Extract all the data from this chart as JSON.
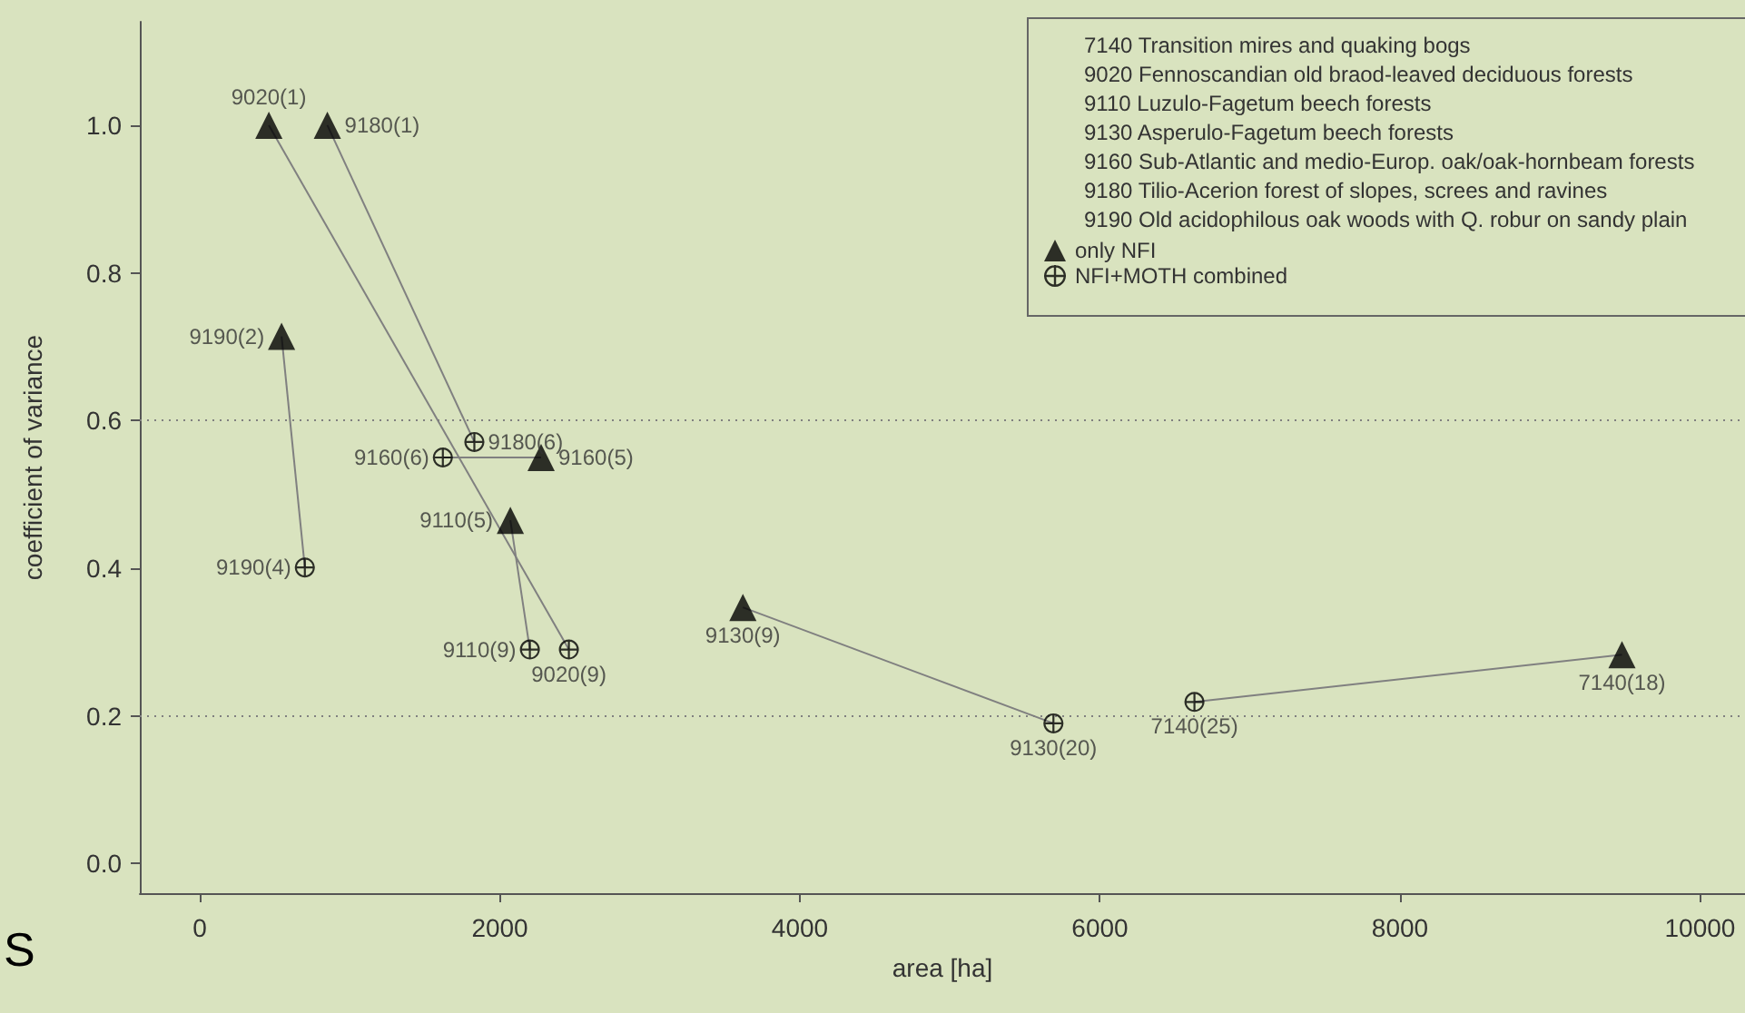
{
  "chart_data": {
    "type": "scatter",
    "xlabel": "area [ha]",
    "ylabel": "coefficient of variance",
    "xlim": [
      -400,
      10300
    ],
    "xticks": [
      0,
      2000,
      4000,
      6000,
      8000,
      10000
    ],
    "ylim": [
      -0.04,
      1.14
    ],
    "yticks": [
      {
        "value": 0,
        "label": "0.0"
      },
      0.2,
      0.4,
      0.6,
      0.8,
      {
        "value": 1,
        "label": "1.0"
      }
    ],
    "grid": false,
    "legend": "top right",
    "series": [
      {
        "name": "only NFI",
        "color": "#000000",
        "marker": "triangle",
        "x": [
          460,
          850,
          545,
          2275,
          2070,
          3620,
          9480
        ],
        "values": [
          1.0,
          1.0,
          0.714,
          0.55,
          0.465,
          0.347,
          0.283
        ],
        "value_labels": [
          "9020(1)",
          "9180(1)",
          "9190(2)",
          "9160(5)",
          "9110(5)",
          "9130(9)",
          "7140(18)"
        ]
      },
      {
        "name": "NFI+MOTH combined",
        "color": "#000000",
        "marker": "circle",
        "x": [
          1830,
          1620,
          700,
          2200,
          2460,
          5690,
          6630
        ],
        "values": [
          0.571,
          0.55,
          0.401,
          0.29,
          0.29,
          0.19,
          0.219
        ],
        "value_labels": [
          "9180(6)",
          "9160(6)",
          "9190(4)",
          "9110(9)",
          "9020(9)",
          "9130(20)",
          "7140(25)"
        ]
      },
      {
        "type": "line",
        "color": "#808080",
        "marker": "none",
        "x": [
          460,
          2460
        ],
        "values": [
          1.0,
          0.29
        ]
      },
      {
        "type": "line",
        "color": "#808080",
        "marker": "none",
        "x": [
          850,
          1830
        ],
        "values": [
          1.0,
          0.571
        ]
      },
      {
        "type": "line",
        "color": "#808080",
        "marker": "none",
        "x": [
          545,
          700
        ],
        "values": [
          0.714,
          0.401
        ]
      },
      {
        "type": "line",
        "color": "#808080",
        "marker": "none",
        "x": [
          2275,
          1620
        ],
        "values": [
          0.55,
          0.55
        ]
      },
      {
        "type": "line",
        "color": "#808080",
        "marker": "none",
        "x": [
          2070,
          2200
        ],
        "values": [
          0.465,
          0.29
        ]
      },
      {
        "type": "line",
        "color": "#808080",
        "marker": "none",
        "x": [
          3620,
          5690
        ],
        "values": [
          0.347,
          0.19
        ]
      },
      {
        "type": "line",
        "color": "#808080",
        "marker": "none",
        "x": [
          9480,
          6630
        ],
        "values": [
          0.283,
          0.219
        ]
      }
    ],
    "ref_lines": [
      {
        "axis": "y",
        "value": 0.2,
        "color": "#808080",
        "line_style": "dotted"
      },
      {
        "axis": "y",
        "value": 0.6,
        "color": "#808080",
        "line_style": "dotted"
      }
    ],
    "annotations": [
      "7140 Transition mires and quaking bogs",
      "9020 Fennoscandian old braod-leaved deciduous forests",
      "9110 Luzulo-Fagetum beech forests",
      "9130 Asperulo-Fagetum beech forests",
      "9160 Sub-Atlantic and medio-Europ. oak/oak-hornbeam forests",
      "9180 Tilio-Acerion forest of slopes, screes and ravines",
      "9190 Old acidophilous oak woods with Q. robur on sandy plain",
      "S"
    ]
  }
}
